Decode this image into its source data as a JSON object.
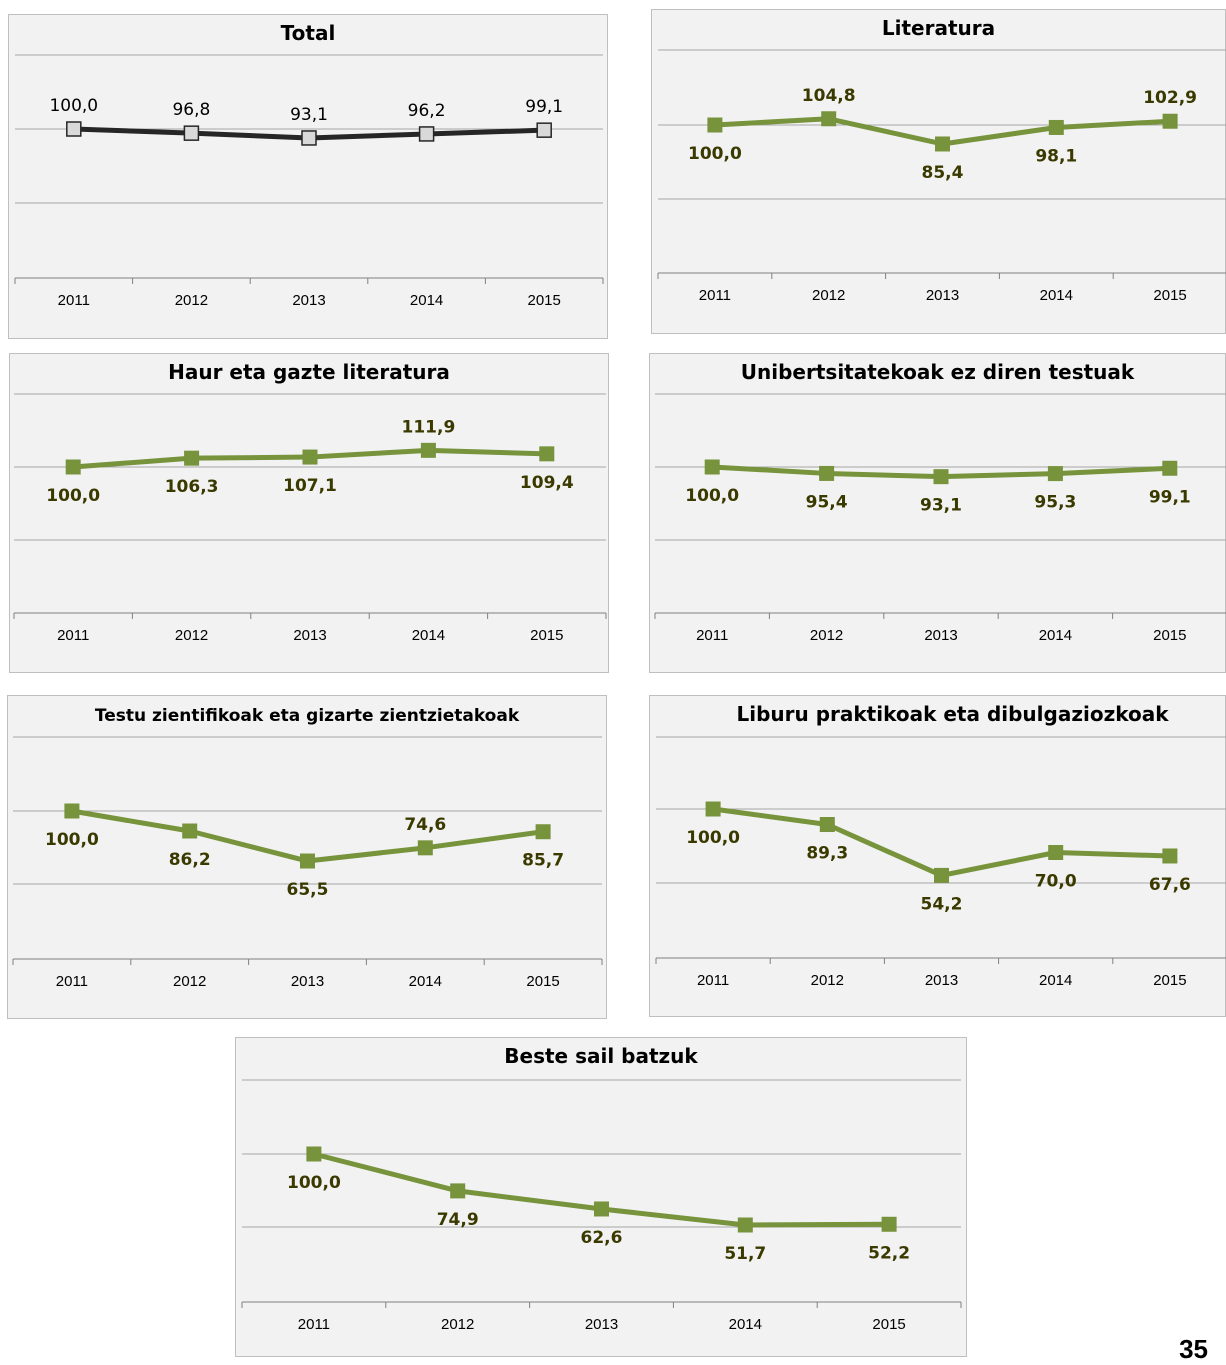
{
  "chart_data": [
    {
      "type": "line",
      "title": "Total",
      "x": [
        "2011",
        "2012",
        "2013",
        "2014",
        "2015"
      ],
      "series": [
        {
          "values": [
            100.0,
            96.8,
            93.1,
            96.2,
            99.1
          ]
        }
      ],
      "labels": [
        "100,0",
        "96,8",
        "93,1",
        "96,2",
        "99,1"
      ],
      "label_position": [
        "above",
        "above",
        "above",
        "above",
        "above"
      ],
      "line_color": "#262626",
      "marker_color": "#d9d9d9",
      "label_color": "#000000",
      "marker_style": "hollow-square",
      "grid": true,
      "legend": "none"
    },
    {
      "type": "line",
      "title": "Literatura",
      "x": [
        "2011",
        "2012",
        "2013",
        "2014",
        "2015"
      ],
      "series": [
        {
          "values": [
            100.0,
            104.8,
            85.4,
            98.1,
            102.9
          ]
        }
      ],
      "labels": [
        "100,0",
        "104,8",
        "85,4",
        "98,1",
        "102,9"
      ],
      "label_position": [
        "below",
        "above",
        "below",
        "below",
        "above"
      ],
      "line_color": "#77933c",
      "marker_color": "#77933c",
      "label_color": "#3a3a00",
      "marker_style": "square",
      "grid": true,
      "legend": "none"
    },
    {
      "type": "line",
      "title": "Haur eta gazte literatura",
      "x": [
        "2011",
        "2012",
        "2013",
        "2014",
        "2015"
      ],
      "series": [
        {
          "values": [
            100.0,
            106.3,
            107.1,
            111.9,
            109.4
          ]
        }
      ],
      "labels": [
        "100,0",
        "106,3",
        "107,1",
        "111,9",
        "109,4"
      ],
      "label_position": [
        "below",
        "below",
        "below",
        "above",
        "below"
      ],
      "line_color": "#77933c",
      "marker_color": "#77933c",
      "label_color": "#3a3a00",
      "marker_style": "square",
      "grid": true,
      "legend": "none"
    },
    {
      "type": "line",
      "title": "Unibertsitatekoak ez diren testuak",
      "x": [
        "2011",
        "2012",
        "2013",
        "2014",
        "2015"
      ],
      "series": [
        {
          "values": [
            100.0,
            95.4,
            93.1,
            95.3,
            99.1
          ]
        }
      ],
      "labels": [
        "100,0",
        "95,4",
        "93,1",
        "95,3",
        "99,1"
      ],
      "label_position": [
        "below",
        "below",
        "below",
        "below",
        "below"
      ],
      "line_color": "#77933c",
      "marker_color": "#77933c",
      "label_color": "#3a3a00",
      "marker_style": "square",
      "grid": true,
      "legend": "none"
    },
    {
      "type": "line",
      "title": "Testu zientifikoak eta gizarte zientzietakoak",
      "x": [
        "2011",
        "2012",
        "2013",
        "2014",
        "2015"
      ],
      "series": [
        {
          "values": [
            100.0,
            86.2,
            65.5,
            74.6,
            85.7
          ]
        }
      ],
      "labels": [
        "100,0",
        "86,2",
        "65,5",
        "74,6",
        "85,7"
      ],
      "label_position": [
        "below",
        "below",
        "below",
        "above",
        "below"
      ],
      "line_color": "#77933c",
      "marker_color": "#77933c",
      "label_color": "#3a3a00",
      "marker_style": "square",
      "grid": true,
      "legend": "none"
    },
    {
      "type": "line",
      "title": "Liburu praktikoak eta dibulgaziozkoak",
      "x": [
        "2011",
        "2012",
        "2013",
        "2014",
        "2015"
      ],
      "series": [
        {
          "values": [
            100.0,
            89.3,
            54.2,
            70.0,
            67.6
          ]
        }
      ],
      "labels": [
        "100,0",
        "89,3",
        "54,2",
        "70,0",
        "67,6"
      ],
      "label_position": [
        "below",
        "below",
        "below",
        "below",
        "below"
      ],
      "line_color": "#77933c",
      "marker_color": "#77933c",
      "label_color": "#3a3a00",
      "marker_style": "square",
      "grid": true,
      "legend": "none"
    },
    {
      "type": "line",
      "title": "Beste sail batzuk",
      "x": [
        "2011",
        "2012",
        "2013",
        "2014",
        "2015"
      ],
      "series": [
        {
          "values": [
            100.0,
            74.9,
            62.6,
            51.7,
            52.2
          ]
        }
      ],
      "labels": [
        "100,0",
        "74,9",
        "62,6",
        "51,7",
        "52,2"
      ],
      "label_position": [
        "below",
        "below",
        "below",
        "below",
        "below"
      ],
      "line_color": "#77933c",
      "marker_color": "#77933c",
      "label_color": "#3a3a00",
      "marker_style": "square",
      "grid": true,
      "legend": "none"
    }
  ],
  "page_number": "35"
}
